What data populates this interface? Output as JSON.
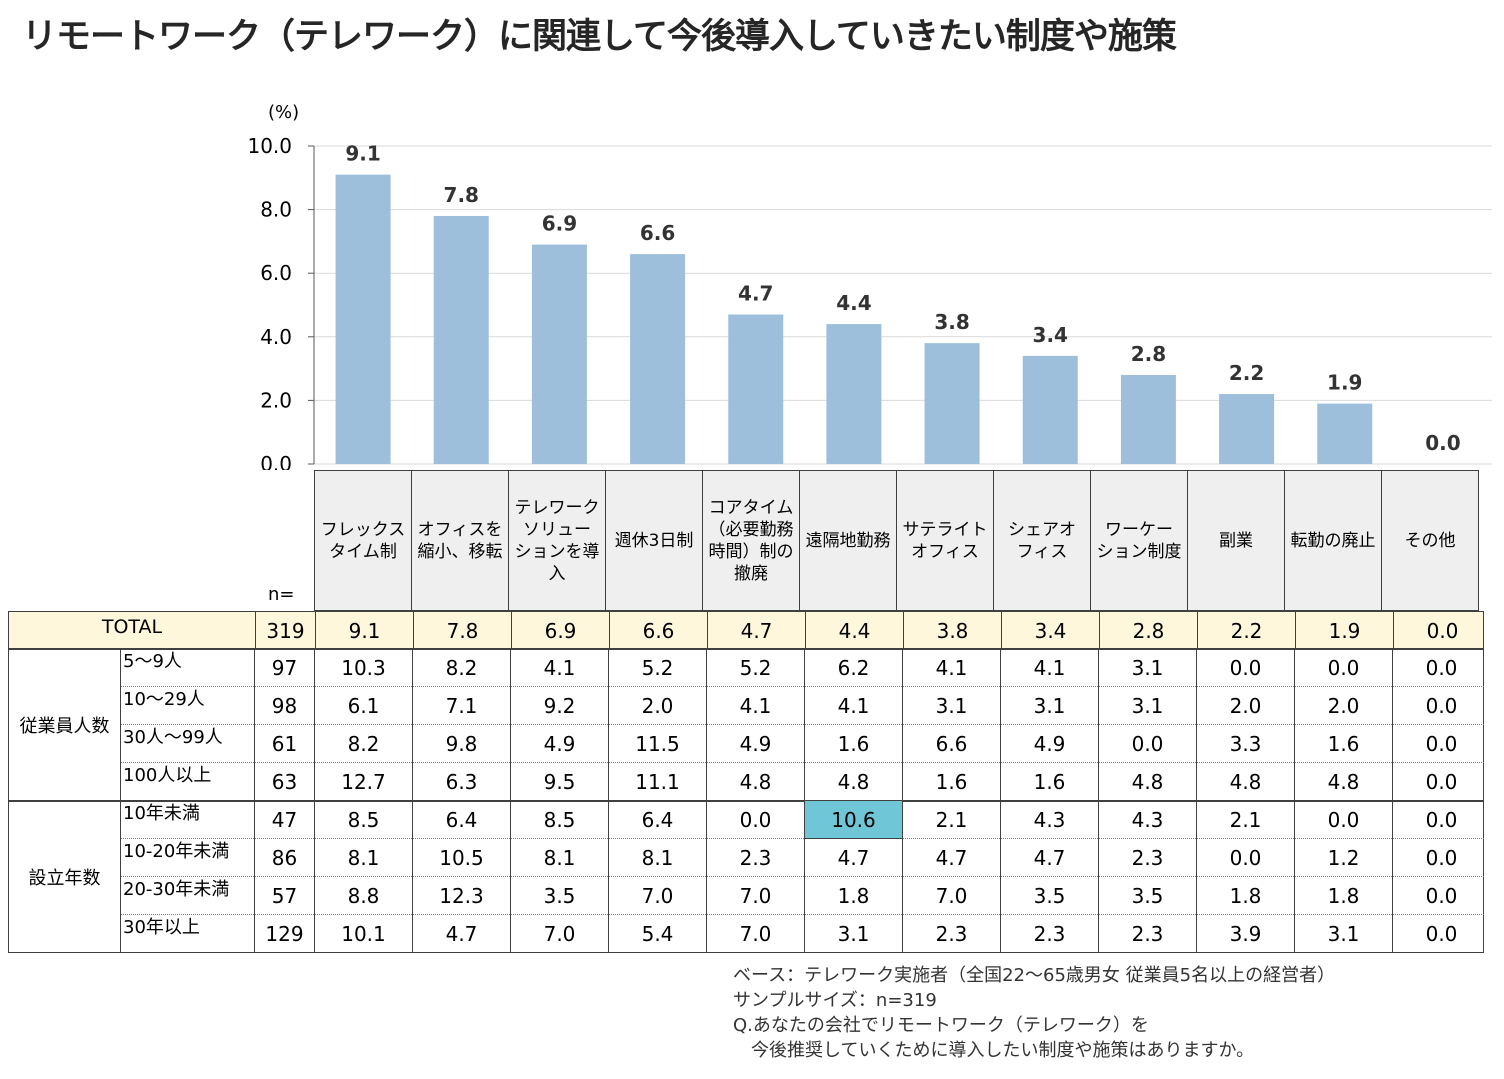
{
  "title": "リモートワーク（テレワーク）に関連して今後導入していきたい制度や施策",
  "chart_data": {
    "type": "bar",
    "unit_label": "(%)",
    "ylim": [
      0,
      10
    ],
    "yticks": [
      "0.0",
      "2.0",
      "4.0",
      "6.0",
      "8.0",
      "10.0"
    ],
    "bar_color": "#9dbfdc",
    "categories": [
      [
        "フレックス",
        "タイム制"
      ],
      [
        "オフィスを",
        "縮小、移転"
      ],
      [
        "テレワーク",
        "ソリュー",
        "ションを導",
        "入"
      ],
      [
        "週休3日制"
      ],
      [
        "コアタイム",
        "（必要勤務",
        "時間）制の",
        "撤廃"
      ],
      [
        "遠隔地勤務"
      ],
      [
        "サテライト",
        "オフィス"
      ],
      [
        "シェアオ",
        "フィス"
      ],
      [
        "ワーケー",
        "ション制度"
      ],
      [
        "副業"
      ],
      [
        "転勤の廃止"
      ],
      [
        "その他"
      ]
    ],
    "values": [
      9.1,
      7.8,
      6.9,
      6.6,
      4.7,
      4.4,
      3.8,
      3.4,
      2.8,
      2.2,
      1.9,
      0.0
    ],
    "value_labels": [
      "9.1",
      "7.8",
      "6.9",
      "6.6",
      "4.7",
      "4.4",
      "3.8",
      "3.4",
      "2.8",
      "2.2",
      "1.9",
      "0.0"
    ]
  },
  "table": {
    "n_label": "n=",
    "total": {
      "label": "TOTAL",
      "n": "319",
      "values": [
        "9.1",
        "7.8",
        "6.9",
        "6.6",
        "4.7",
        "4.4",
        "3.8",
        "3.4",
        "2.8",
        "2.2",
        "1.9",
        "0.0"
      ]
    },
    "groups": [
      {
        "label": "従業員人数",
        "rows": [
          {
            "label": "5～9人",
            "n": "97",
            "values": [
              "10.3",
              "8.2",
              "4.1",
              "5.2",
              "5.2",
              "6.2",
              "4.1",
              "4.1",
              "3.1",
              "0.0",
              "0.0",
              "0.0"
            ]
          },
          {
            "label": "10～29人",
            "n": "98",
            "values": [
              "6.1",
              "7.1",
              "9.2",
              "2.0",
              "4.1",
              "4.1",
              "3.1",
              "3.1",
              "3.1",
              "2.0",
              "2.0",
              "0.0"
            ]
          },
          {
            "label": "30人～99人",
            "n": "61",
            "values": [
              "8.2",
              "9.8",
              "4.9",
              "11.5",
              "4.9",
              "1.6",
              "6.6",
              "4.9",
              "0.0",
              "3.3",
              "1.6",
              "0.0"
            ]
          },
          {
            "label": "100人以上",
            "n": "63",
            "values": [
              "12.7",
              "6.3",
              "9.5",
              "11.1",
              "4.8",
              "4.8",
              "1.6",
              "1.6",
              "4.8",
              "4.8",
              "4.8",
              "0.0"
            ]
          }
        ]
      },
      {
        "label": "設立年数",
        "rows": [
          {
            "label": "10年未満",
            "n": "47",
            "values": [
              "8.5",
              "6.4",
              "8.5",
              "6.4",
              "0.0",
              "10.6",
              "2.1",
              "4.3",
              "4.3",
              "2.1",
              "0.0",
              "0.0"
            ],
            "highlight": 5
          },
          {
            "label": "10-20年未満",
            "n": "86",
            "values": [
              "8.1",
              "10.5",
              "8.1",
              "8.1",
              "2.3",
              "4.7",
              "4.7",
              "4.7",
              "2.3",
              "0.0",
              "1.2",
              "0.0"
            ]
          },
          {
            "label": "20-30年未満",
            "n": "57",
            "values": [
              "8.8",
              "12.3",
              "3.5",
              "7.0",
              "7.0",
              "1.8",
              "7.0",
              "3.5",
              "3.5",
              "1.8",
              "1.8",
              "0.0"
            ]
          },
          {
            "label": "30年以上",
            "n": "129",
            "values": [
              "10.1",
              "4.7",
              "7.0",
              "5.4",
              "7.0",
              "3.1",
              "2.3",
              "2.3",
              "2.3",
              "3.9",
              "3.1",
              "0.0"
            ]
          }
        ]
      }
    ],
    "total_bg": "#fff7dc",
    "highlight_bg": "#6ec6d6"
  },
  "notes": [
    "ベース：テレワーク実施者（全国22～65歳男女 従業員5名以上の経営者）",
    "サンプルサイズ：n=319",
    "Q.あなたの会社でリモートワーク（テレワーク）を",
    "　今後推奨していくために導入したい制度や施策はありますか。"
  ]
}
